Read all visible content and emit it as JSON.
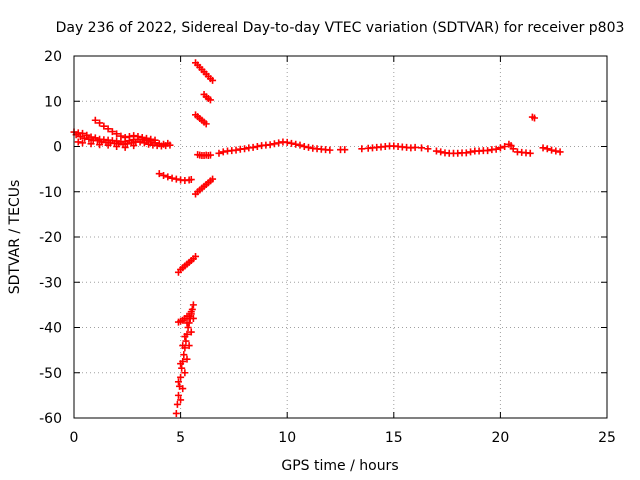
{
  "chart_data": {
    "type": "scatter",
    "title": "Day 236 of 2022, Sidereal Day-to-day VTEC variation (SDTVAR) for receiver p803",
    "xlabel": "GPS time / hours",
    "ylabel": "SDTVAR / TECUs",
    "xlim": [
      0,
      25
    ],
    "ylim": [
      -60,
      20
    ],
    "xticks": [
      0,
      5,
      10,
      15,
      20,
      25
    ],
    "xtick_labels": [
      "0",
      "5",
      "10",
      "15",
      "20",
      "25"
    ],
    "yticks": [
      20,
      10,
      0,
      -10,
      -20,
      -30,
      -40,
      -50,
      -60
    ],
    "ytick_labels": [
      "20",
      "10",
      "0",
      "-10",
      "-20",
      "-30",
      "-40",
      "-50",
      "-60"
    ],
    "grid": true,
    "marker": "plus",
    "color": "#ff0000",
    "series": [
      {
        "name": "SDTVAR",
        "points": [
          [
            0.0,
            3.2
          ],
          [
            0.1,
            2.6
          ],
          [
            0.2,
            3.0
          ],
          [
            0.3,
            2.2
          ],
          [
            0.4,
            2.9
          ],
          [
            0.5,
            1.8
          ],
          [
            0.6,
            2.5
          ],
          [
            0.7,
            1.6
          ],
          [
            0.8,
            2.1
          ],
          [
            0.9,
            1.4
          ],
          [
            1.0,
            1.9
          ],
          [
            1.1,
            1.3
          ],
          [
            1.2,
            1.6
          ],
          [
            1.3,
            1.0
          ],
          [
            1.4,
            1.5
          ],
          [
            1.5,
            0.9
          ],
          [
            1.6,
            1.4
          ],
          [
            1.7,
            0.8
          ],
          [
            1.8,
            1.3
          ],
          [
            1.9,
            0.7
          ],
          [
            2.0,
            1.2
          ],
          [
            2.1,
            0.6
          ],
          [
            2.2,
            1.0
          ],
          [
            2.3,
            0.5
          ],
          [
            2.4,
            1.1
          ],
          [
            2.5,
            0.6
          ],
          [
            2.6,
            1.3
          ],
          [
            2.7,
            0.8
          ],
          [
            2.8,
            1.5
          ],
          [
            2.9,
            1.0
          ],
          [
            3.0,
            1.6
          ],
          [
            3.1,
            1.0
          ],
          [
            3.2,
            1.5
          ],
          [
            3.3,
            0.8
          ],
          [
            3.4,
            1.3
          ],
          [
            3.5,
            0.5
          ],
          [
            3.6,
            1.0
          ],
          [
            3.7,
            0.3
          ],
          [
            3.8,
            0.8
          ],
          [
            3.9,
            0.2
          ],
          [
            4.0,
            0.6
          ],
          [
            4.1,
            0.1
          ],
          [
            4.2,
            0.5
          ],
          [
            4.3,
            0.2
          ],
          [
            4.4,
            0.7
          ],
          [
            4.5,
            0.3
          ],
          [
            0.2,
            1.0
          ],
          [
            0.4,
            0.8
          ],
          [
            0.8,
            0.6
          ],
          [
            1.2,
            0.4
          ],
          [
            1.6,
            0.3
          ],
          [
            2.0,
            0.0
          ],
          [
            2.4,
            -0.2
          ],
          [
            2.8,
            0.2
          ],
          [
            1.0,
            5.8
          ],
          [
            1.2,
            5.2
          ],
          [
            1.4,
            4.5
          ],
          [
            1.6,
            3.9
          ],
          [
            1.8,
            3.3
          ],
          [
            2.0,
            2.8
          ],
          [
            2.2,
            2.3
          ],
          [
            2.4,
            2.0
          ],
          [
            2.6,
            2.2
          ],
          [
            2.8,
            2.4
          ],
          [
            3.0,
            2.2
          ],
          [
            3.2,
            2.0
          ],
          [
            3.4,
            1.8
          ],
          [
            3.6,
            1.6
          ],
          [
            3.8,
            1.4
          ],
          [
            4.0,
            -6.0
          ],
          [
            4.2,
            -6.4
          ],
          [
            4.4,
            -6.7
          ],
          [
            4.6,
            -7.0
          ],
          [
            4.8,
            -7.2
          ],
          [
            5.0,
            -7.4
          ],
          [
            5.2,
            -7.5
          ],
          [
            5.4,
            -7.4
          ],
          [
            5.5,
            -7.3
          ],
          [
            5.7,
            18.5
          ],
          [
            5.8,
            18.0
          ],
          [
            5.9,
            17.5
          ],
          [
            6.0,
            17.0
          ],
          [
            6.1,
            16.5
          ],
          [
            6.2,
            16.0
          ],
          [
            6.3,
            15.5
          ],
          [
            6.4,
            15.0
          ],
          [
            6.5,
            14.6
          ],
          [
            6.1,
            11.5
          ],
          [
            6.2,
            11.0
          ],
          [
            6.3,
            10.6
          ],
          [
            6.4,
            10.3
          ],
          [
            5.7,
            7.0
          ],
          [
            5.8,
            6.6
          ],
          [
            5.9,
            6.2
          ],
          [
            6.0,
            5.8
          ],
          [
            6.1,
            5.4
          ],
          [
            6.2,
            5.0
          ],
          [
            5.7,
            -10.5
          ],
          [
            5.8,
            -10.0
          ],
          [
            5.9,
            -9.6
          ],
          [
            6.0,
            -9.2
          ],
          [
            6.1,
            -8.8
          ],
          [
            6.2,
            -8.4
          ],
          [
            6.3,
            -8.0
          ],
          [
            6.4,
            -7.6
          ],
          [
            6.5,
            -7.2
          ],
          [
            4.9,
            -27.8
          ],
          [
            5.0,
            -27.2
          ],
          [
            5.1,
            -26.8
          ],
          [
            5.2,
            -26.4
          ],
          [
            5.3,
            -26.0
          ],
          [
            5.4,
            -25.6
          ],
          [
            5.5,
            -25.2
          ],
          [
            5.6,
            -24.8
          ],
          [
            5.7,
            -24.3
          ],
          [
            4.9,
            -38.8
          ],
          [
            5.0,
            -38.6
          ],
          [
            5.1,
            -38.4
          ],
          [
            5.2,
            -38.0
          ],
          [
            5.3,
            -37.5
          ],
          [
            4.8,
            -59.0
          ],
          [
            4.85,
            -57.0
          ],
          [
            4.9,
            -55.0
          ],
          [
            4.95,
            -53.0
          ],
          [
            5.0,
            -51.0
          ],
          [
            5.05,
            -49.0
          ],
          [
            5.1,
            -47.5
          ],
          [
            5.15,
            -46.0
          ],
          [
            5.2,
            -44.5
          ],
          [
            5.25,
            -43.0
          ],
          [
            5.3,
            -41.5
          ],
          [
            5.35,
            -40.0
          ],
          [
            5.4,
            -39.0
          ],
          [
            5.45,
            -38.0
          ],
          [
            5.5,
            -37.0
          ],
          [
            5.55,
            -36.0
          ],
          [
            5.6,
            -35.0
          ],
          [
            4.9,
            -52.0
          ],
          [
            5.0,
            -48.0
          ],
          [
            5.1,
            -44.0
          ],
          [
            5.2,
            -42.0
          ],
          [
            5.3,
            -39.0
          ],
          [
            5.4,
            -37.5
          ],
          [
            5.5,
            -36.5
          ],
          [
            5.0,
            -56.0
          ],
          [
            5.1,
            -53.5
          ],
          [
            5.2,
            -50.0
          ],
          [
            5.3,
            -47.0
          ],
          [
            5.4,
            -44.0
          ],
          [
            5.5,
            -41.0
          ],
          [
            5.6,
            -38.0
          ],
          [
            5.8,
            -1.8
          ],
          [
            5.9,
            -1.9
          ],
          [
            6.0,
            -2.0
          ],
          [
            6.1,
            -2.0
          ],
          [
            6.2,
            -1.9
          ],
          [
            6.3,
            -2.0
          ],
          [
            6.4,
            -1.9
          ],
          [
            6.8,
            -1.5
          ],
          [
            7.0,
            -1.2
          ],
          [
            7.2,
            -1.0
          ],
          [
            7.4,
            -0.9
          ],
          [
            7.6,
            -0.8
          ],
          [
            7.8,
            -0.6
          ],
          [
            8.0,
            -0.5
          ],
          [
            8.2,
            -0.3
          ],
          [
            8.4,
            -0.2
          ],
          [
            8.6,
            0.0
          ],
          [
            8.8,
            0.2
          ],
          [
            9.0,
            0.3
          ],
          [
            9.2,
            0.4
          ],
          [
            9.4,
            0.6
          ],
          [
            9.6,
            0.8
          ],
          [
            9.8,
            1.0
          ],
          [
            10.0,
            0.9
          ],
          [
            10.2,
            0.7
          ],
          [
            10.4,
            0.5
          ],
          [
            10.6,
            0.3
          ],
          [
            10.8,
            0.0
          ],
          [
            11.0,
            -0.2
          ],
          [
            11.2,
            -0.4
          ],
          [
            11.4,
            -0.5
          ],
          [
            11.6,
            -0.6
          ],
          [
            11.8,
            -0.7
          ],
          [
            12.0,
            -0.8
          ],
          [
            12.5,
            -0.7
          ],
          [
            12.7,
            -0.7
          ],
          [
            13.5,
            -0.5
          ],
          [
            13.8,
            -0.4
          ],
          [
            14.0,
            -0.3
          ],
          [
            14.2,
            -0.2
          ],
          [
            14.4,
            -0.1
          ],
          [
            14.6,
            0.0
          ],
          [
            14.8,
            0.1
          ],
          [
            15.0,
            0.1
          ],
          [
            15.2,
            0.0
          ],
          [
            15.4,
            -0.1
          ],
          [
            15.6,
            -0.2
          ],
          [
            15.8,
            -0.3
          ],
          [
            16.0,
            -0.2
          ],
          [
            16.3,
            -0.3
          ],
          [
            16.6,
            -0.5
          ],
          [
            17.0,
            -1.0
          ],
          [
            17.2,
            -1.2
          ],
          [
            17.4,
            -1.4
          ],
          [
            17.6,
            -1.5
          ],
          [
            17.8,
            -1.5
          ],
          [
            18.0,
            -1.5
          ],
          [
            18.2,
            -1.4
          ],
          [
            18.4,
            -1.4
          ],
          [
            18.6,
            -1.2
          ],
          [
            18.8,
            -1.0
          ],
          [
            19.0,
            -1.0
          ],
          [
            19.2,
            -0.9
          ],
          [
            19.4,
            -0.9
          ],
          [
            19.6,
            -0.7
          ],
          [
            19.8,
            -0.6
          ],
          [
            20.0,
            -0.3
          ],
          [
            20.2,
            0.0
          ],
          [
            20.4,
            0.5
          ],
          [
            20.5,
            0.2
          ],
          [
            20.6,
            -0.5
          ],
          [
            20.8,
            -1.2
          ],
          [
            21.0,
            -1.3
          ],
          [
            21.2,
            -1.4
          ],
          [
            21.4,
            -1.5
          ],
          [
            21.5,
            6.5
          ],
          [
            21.6,
            6.3
          ],
          [
            22.0,
            -0.3
          ],
          [
            22.2,
            -0.5
          ],
          [
            22.4,
            -0.8
          ],
          [
            22.6,
            -1.0
          ],
          [
            22.8,
            -1.2
          ]
        ]
      }
    ]
  }
}
